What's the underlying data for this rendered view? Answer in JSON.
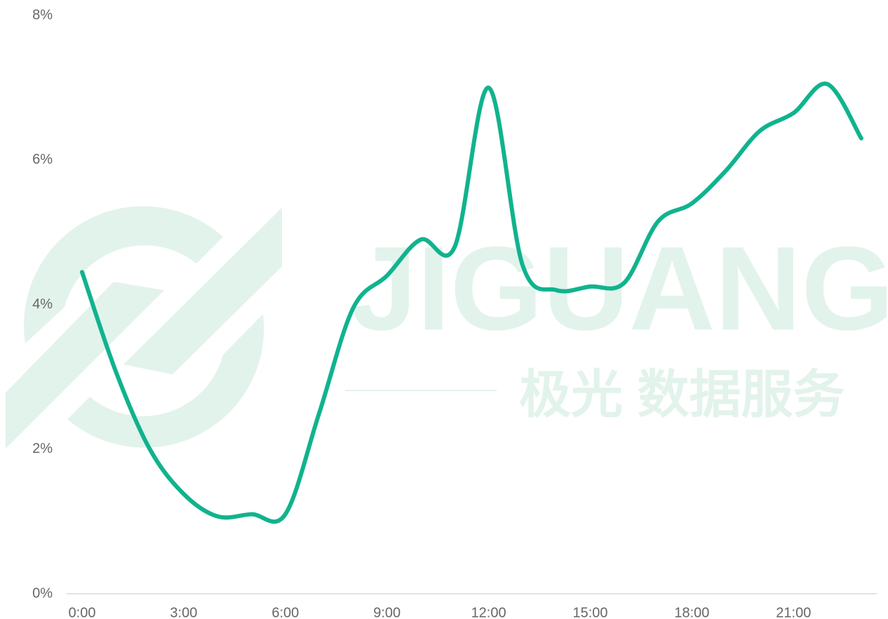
{
  "chart_data": {
    "type": "line",
    "watermark": [
      "JIGUANG",
      "极光 数据服务"
    ],
    "categories": [
      "0:00",
      null,
      null,
      "3:00",
      null,
      null,
      "6:00",
      null,
      null,
      "9:00",
      null,
      null,
      "12:00",
      null,
      null,
      "15:00",
      null,
      null,
      "18:00",
      null,
      null,
      "21:00",
      null,
      null
    ],
    "series": [
      {
        "color": "#10b38e",
        "values": [
          4.45,
          3.07,
          2.0,
          1.38,
          1.07,
          1.1,
          1.1,
          2.5,
          3.95,
          4.4,
          4.9,
          4.8,
          7.0,
          4.55,
          4.2,
          4.25,
          4.3,
          5.15,
          5.4,
          5.85,
          6.4,
          6.65,
          7.05,
          6.3
        ]
      }
    ],
    "ylim": [
      0,
      8
    ],
    "yticks": [
      {
        "value": 0,
        "label": "0%"
      },
      {
        "value": 2,
        "label": "2%"
      },
      {
        "value": 4,
        "label": "4%"
      },
      {
        "value": 6,
        "label": "6%"
      },
      {
        "value": 8,
        "label": "8%"
      }
    ],
    "grid": false
  }
}
